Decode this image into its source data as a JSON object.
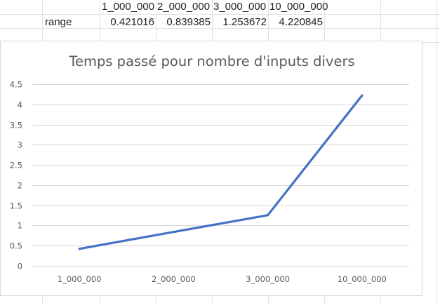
{
  "sheet": {
    "header_row": [
      "1_000_000",
      "2_000_000",
      "3_000_000",
      "10_000_000"
    ],
    "row_label": "range",
    "row_values": [
      "0.421016",
      "0.839385",
      "1.253672",
      "4.220845"
    ]
  },
  "chart_data": {
    "type": "line",
    "title": "Temps passé pour nombre d'inputs divers",
    "categories": [
      "1_000_000",
      "2_000_000",
      "3_000_000",
      "10_000_000"
    ],
    "series": [
      {
        "values": [
          0.421016,
          0.839385,
          1.253672,
          4.220845
        ],
        "color": "#4472c4"
      }
    ],
    "ylim": [
      0,
      4.5
    ],
    "yticks": [
      "0",
      "0.5",
      "1",
      "1.5",
      "2",
      "2.5",
      "3",
      "3.5",
      "4",
      "4.5"
    ],
    "grid": true,
    "legend": "none"
  }
}
